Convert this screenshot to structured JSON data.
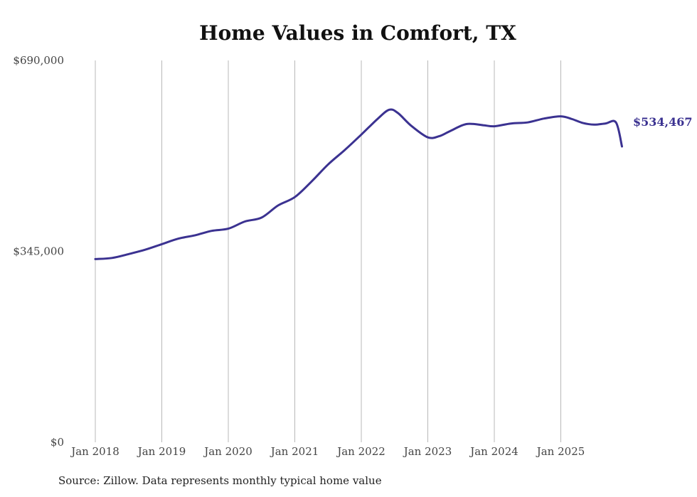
{
  "chart_data": {
    "type": "line",
    "title": "Home Values in Comfort, TX",
    "xlabel": "",
    "ylabel": "",
    "ylim": [
      0,
      690000
    ],
    "y_ticks": [
      {
        "value": 0,
        "label": "$0"
      },
      {
        "value": 345000,
        "label": "$345,000"
      },
      {
        "value": 690000,
        "label": "$690,000"
      }
    ],
    "x_ticks": [
      {
        "value": 2018,
        "label": "Jan 2018"
      },
      {
        "value": 2019,
        "label": "Jan 2019"
      },
      {
        "value": 2020,
        "label": "Jan 2020"
      },
      {
        "value": 2021,
        "label": "Jan 2021"
      },
      {
        "value": 2022,
        "label": "Jan 2022"
      },
      {
        "value": 2023,
        "label": "Jan 2023"
      },
      {
        "value": 2024,
        "label": "Jan 2024"
      },
      {
        "value": 2025,
        "label": "Jan 2025"
      }
    ],
    "grid": "vertical",
    "line_color": "#3b3291",
    "series": [
      {
        "name": "Typical home value",
        "x": [
          2018.0,
          2018.25,
          2018.5,
          2018.75,
          2019.0,
          2019.25,
          2019.5,
          2019.75,
          2020.0,
          2020.25,
          2020.5,
          2020.75,
          2021.0,
          2021.25,
          2021.5,
          2021.75,
          2022.0,
          2022.25,
          2022.42,
          2022.55,
          2022.75,
          2023.0,
          2023.17,
          2023.33,
          2023.58,
          2023.83,
          2024.0,
          2024.25,
          2024.5,
          2024.75,
          2025.0,
          2025.17,
          2025.33,
          2025.5,
          2025.67,
          2025.83,
          2025.92
        ],
        "values": [
          331000,
          333000,
          340000,
          348000,
          358000,
          368000,
          374000,
          382000,
          386000,
          399000,
          406000,
          428000,
          443000,
          471000,
          502000,
          528000,
          556000,
          585000,
          601000,
          595000,
          572000,
          551000,
          553000,
          562000,
          575000,
          573000,
          571000,
          576000,
          578000,
          585000,
          589000,
          584000,
          577000,
          574000,
          576000,
          578000,
          534467
        ]
      }
    ],
    "end_value": 534467,
    "end_label": "$534,467"
  },
  "footer": {
    "source": "Source: Zillow. Data represents monthly typical home value"
  }
}
